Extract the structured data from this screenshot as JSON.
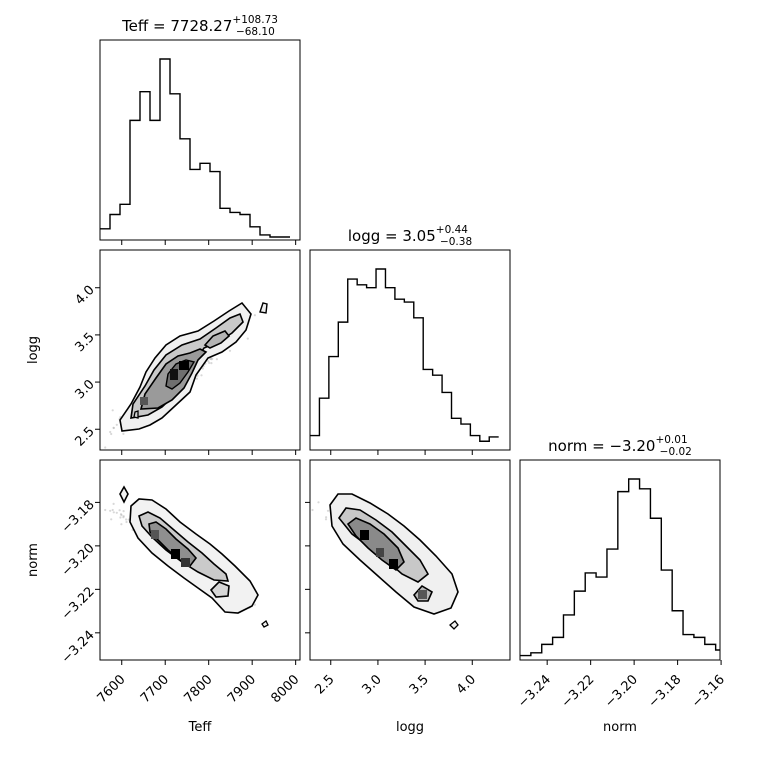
{
  "chart_data": {
    "type": "corner",
    "parameters": [
      "Teff",
      "logg",
      "norm"
    ],
    "titles": [
      {
        "param": "Teff",
        "value": "7728.27",
        "plus": "+108.73",
        "minus": "−68.10"
      },
      {
        "param": "logg",
        "value": "3.05",
        "plus": "+0.44",
        "minus": "−0.38"
      },
      {
        "param": "norm",
        "value": "−3.20",
        "plus": "+0.01",
        "minus": "−0.02"
      }
    ],
    "ranges": {
      "Teff": [
        7550,
        8010
      ],
      "logg": [
        2.28,
        4.4
      ],
      "norm": [
        -3.2525,
        -3.1605
      ]
    },
    "ticks": {
      "Teff": [
        7600,
        7700,
        7800,
        7900,
        8000
      ],
      "logg": [
        2.5,
        3.0,
        3.5,
        4.0
      ],
      "norm": [
        -3.24,
        -3.22,
        -3.2,
        -3.18,
        -3.16
      ]
    },
    "tick_labels": {
      "Teff": [
        "7600",
        "7700",
        "7800",
        "7900",
        "8000"
      ],
      "logg": [
        "2.5",
        "3.0",
        "3.5",
        "4.0"
      ],
      "norm": [
        "−3.24",
        "−3.22",
        "−3.20",
        "−3.18",
        "−3.16"
      ]
    },
    "histograms": {
      "Teff": {
        "bin_width": 23,
        "counts": [
          4,
          11,
          16,
          57,
          71,
          57,
          87,
          70,
          48,
          33,
          36,
          32,
          14,
          12,
          11,
          5,
          1,
          0,
          0
        ]
      },
      "logg": {
        "bin_width": 0.1,
        "counts": [
          8,
          34,
          63,
          87,
          117,
          113,
          111,
          124,
          111,
          103,
          101,
          90,
          54,
          50,
          38,
          20,
          16,
          8,
          4,
          7
        ]
      },
      "norm": {
        "bin_width": 0.005,
        "counts": [
          1,
          3,
          9,
          14,
          30,
          47,
          60,
          57,
          77,
          118,
          127,
          120,
          99,
          62,
          33,
          16,
          14,
          9,
          5
        ]
      }
    },
    "colors": {
      "line": "#000000",
      "points": "#b8b8b8",
      "density": "#000000"
    }
  }
}
